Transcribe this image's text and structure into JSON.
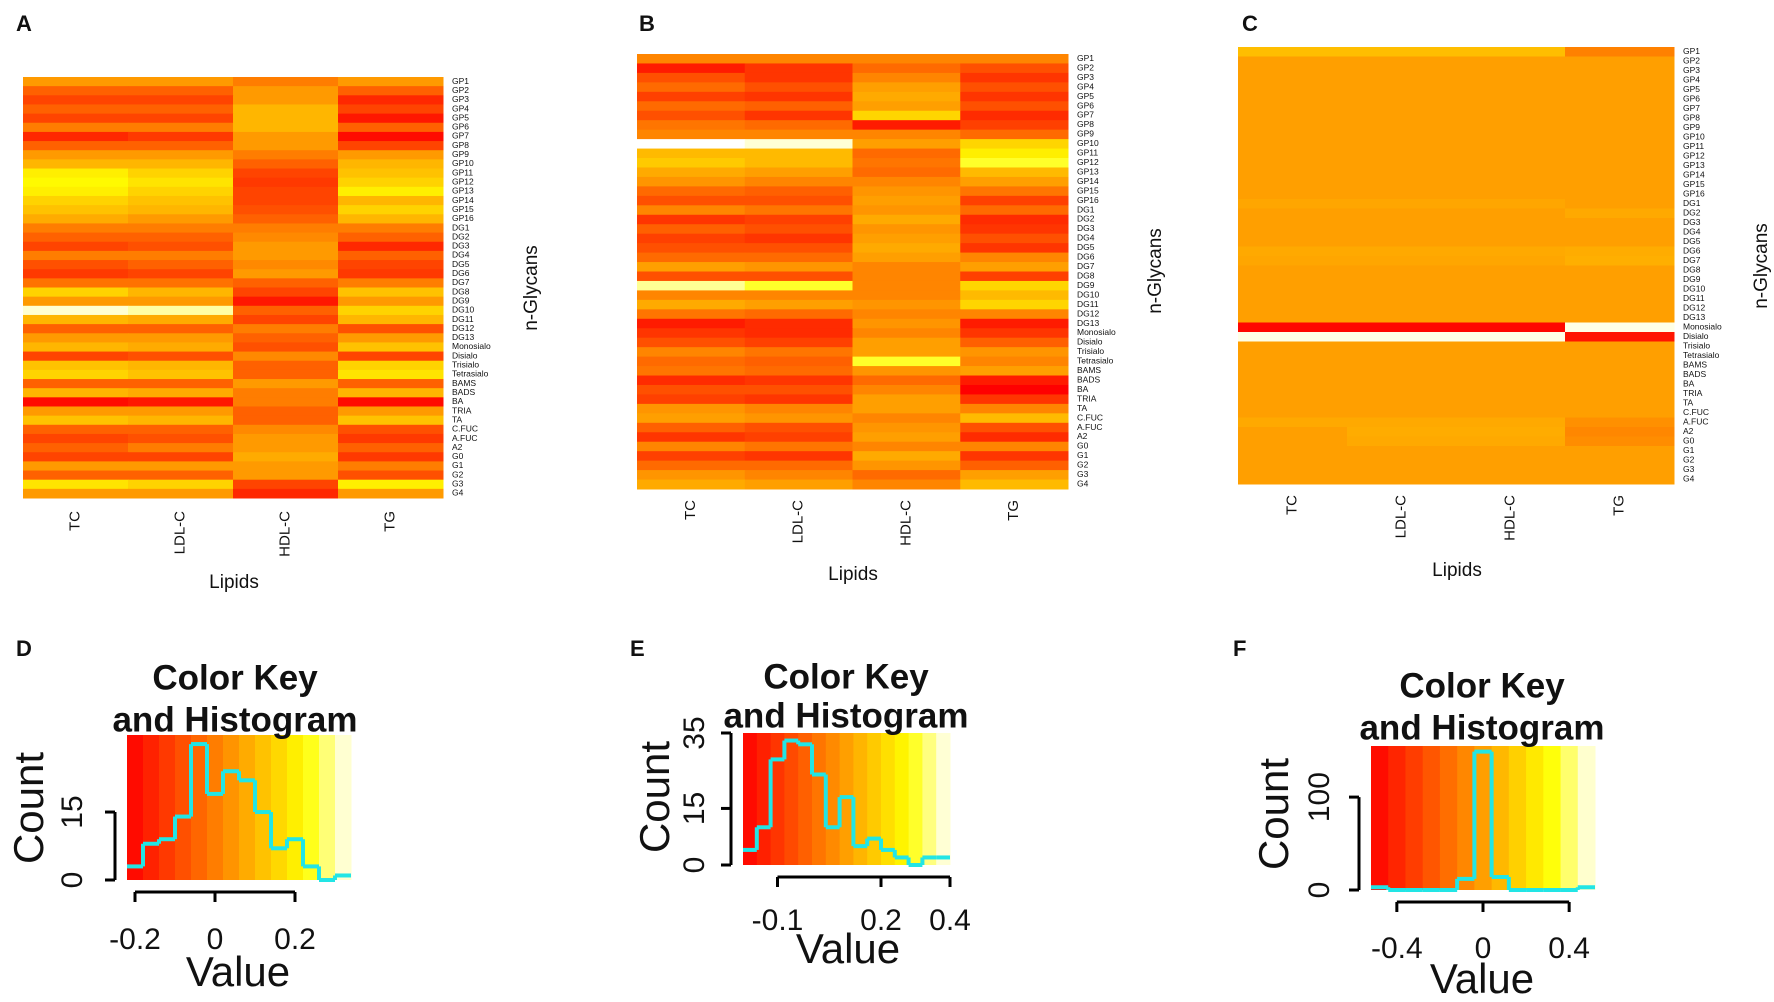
{
  "chart_data": [
    {
      "type": "heatmap",
      "panel": "A",
      "xlabel": "Lipids",
      "ylabel": "n-Glycans",
      "columns": [
        "TC",
        "LDL-C",
        "HDL-C",
        "TG"
      ],
      "rows": [
        "GP1",
        "GP2",
        "GP3",
        "GP4",
        "GP5",
        "GP6",
        "GP7",
        "GP8",
        "GP9",
        "GP10",
        "GP11",
        "GP12",
        "GP13",
        "GP14",
        "GP15",
        "GP16",
        "DG1",
        "DG2",
        "DG3",
        "DG4",
        "DG5",
        "DG6",
        "DG7",
        "DG8",
        "DG9",
        "DG10",
        "DG11",
        "DG12",
        "DG13",
        "Monosialo",
        "Disialo",
        "Trisialo",
        "Tetrasialo",
        "BAMS",
        "BADS",
        "BA",
        "TRIA",
        "TA",
        "C.FUC",
        "A.FUC",
        "A2",
        "G0",
        "G1",
        "G2",
        "G3",
        "G4"
      ],
      "zlim": [
        -0.22,
        0.34
      ],
      "values": [
        [
          0.05,
          0.05,
          0,
          0.05
        ],
        [
          -0.05,
          -0.05,
          0.05,
          -0.05
        ],
        [
          -0.1,
          -0.1,
          0.05,
          -0.15
        ],
        [
          -0.05,
          -0.05,
          0.1,
          -0.1
        ],
        [
          -0.1,
          -0.1,
          0.1,
          -0.18
        ],
        [
          0,
          0,
          0.1,
          -0.05
        ],
        [
          -0.15,
          -0.12,
          0.05,
          -0.2
        ],
        [
          -0.05,
          -0.05,
          0.05,
          -0.1
        ],
        [
          0.05,
          0.05,
          0,
          0.05
        ],
        [
          0.1,
          0.1,
          -0.05,
          0.1
        ],
        [
          0.2,
          0.15,
          -0.1,
          0.12
        ],
        [
          0.22,
          0.18,
          -0.12,
          0.15
        ],
        [
          0.2,
          0.15,
          -0.1,
          0.2
        ],
        [
          0.15,
          0.12,
          -0.1,
          0.1
        ],
        [
          0.12,
          0.1,
          -0.08,
          0.15
        ],
        [
          0.08,
          0.05,
          -0.05,
          0.1
        ],
        [
          0,
          0,
          0,
          0
        ],
        [
          -0.05,
          -0.05,
          0.02,
          -0.05
        ],
        [
          -0.1,
          -0.08,
          0.05,
          -0.15
        ],
        [
          0,
          0,
          0.05,
          -0.05
        ],
        [
          -0.08,
          -0.05,
          0.02,
          -0.1
        ],
        [
          -0.12,
          -0.1,
          0.05,
          -0.12
        ],
        [
          -0.02,
          -0.02,
          -0.05,
          0
        ],
        [
          0.15,
          0.1,
          -0.1,
          0.12
        ],
        [
          0.05,
          0.05,
          -0.18,
          0.05
        ],
        [
          0.32,
          0.3,
          -0.05,
          0.15
        ],
        [
          0.1,
          0.08,
          -0.1,
          0.1
        ],
        [
          -0.05,
          -0.05,
          0,
          -0.08
        ],
        [
          0.05,
          0.05,
          -0.05,
          0.05
        ],
        [
          0.1,
          0.08,
          -0.08,
          0.12
        ],
        [
          -0.1,
          -0.08,
          0.02,
          -0.1
        ],
        [
          0.12,
          0.1,
          -0.05,
          0.15
        ],
        [
          0.15,
          0.12,
          -0.05,
          0.18
        ],
        [
          -0.05,
          -0.05,
          0.05,
          -0.05
        ],
        [
          0.1,
          0.08,
          0,
          0.1
        ],
        [
          -0.2,
          -0.18,
          0,
          -0.2
        ],
        [
          0.05,
          0.05,
          -0.05,
          0.05
        ],
        [
          0.12,
          0.1,
          -0.05,
          0.12
        ],
        [
          -0.05,
          -0.05,
          0.02,
          -0.08
        ],
        [
          -0.1,
          -0.08,
          0.05,
          -0.12
        ],
        [
          -0.05,
          0,
          0.05,
          -0.05
        ],
        [
          -0.1,
          -0.1,
          0.08,
          -0.12
        ],
        [
          0.05,
          0.05,
          0.05,
          0
        ],
        [
          -0.05,
          -0.05,
          0.05,
          -0.08
        ],
        [
          0.18,
          0.15,
          -0.1,
          0.2
        ],
        [
          0.05,
          0.05,
          -0.15,
          0.05
        ]
      ]
    },
    {
      "type": "heatmap",
      "panel": "B",
      "xlabel": "Lipids",
      "ylabel": "n-Glycans",
      "columns": [
        "TC",
        "LDL-C",
        "HDL-C",
        "TG"
      ],
      "rows": [
        "GP1",
        "GP2",
        "GP3",
        "GP4",
        "GP5",
        "GP6",
        "GP7",
        "GP8",
        "GP9",
        "GP10",
        "GP11",
        "GP12",
        "GP13",
        "GP14",
        "GP15",
        "GP16",
        "DG1",
        "DG2",
        "DG3",
        "DG4",
        "DG5",
        "DG6",
        "DG7",
        "DG8",
        "DG9",
        "DG10",
        "DG11",
        "DG12",
        "DG13",
        "Monosialo",
        "Disialo",
        "Trisialo",
        "Tetrasialo",
        "BAMS",
        "BADS",
        "BA",
        "TRIA",
        "TA",
        "C.FUC",
        "A.FUC",
        "A2",
        "G0",
        "G1",
        "G2",
        "G3",
        "G4"
      ],
      "zlim": [
        -0.2,
        0.4
      ],
      "values": [
        [
          0.05,
          0.05,
          0.05,
          0.05
        ],
        [
          -0.15,
          -0.1,
          0,
          -0.05
        ],
        [
          -0.05,
          -0.1,
          0.05,
          -0.1
        ],
        [
          0,
          -0.05,
          0.1,
          -0.05
        ],
        [
          -0.08,
          -0.1,
          0.12,
          -0.1
        ],
        [
          0,
          -0.02,
          0.1,
          -0.05
        ],
        [
          -0.05,
          -0.1,
          0.2,
          -0.12
        ],
        [
          0.02,
          0,
          -0.15,
          -0.08
        ],
        [
          0.05,
          0.05,
          0.05,
          0
        ],
        [
          0.4,
          0.38,
          0.1,
          0.2
        ],
        [
          0.15,
          0.15,
          0,
          0.25
        ],
        [
          0.18,
          0.15,
          0.02,
          0.3
        ],
        [
          0.12,
          0.1,
          0,
          0.15
        ],
        [
          0.08,
          0.05,
          0.05,
          0.1
        ],
        [
          0,
          -0.02,
          0.08,
          0.02
        ],
        [
          -0.05,
          -0.05,
          0.1,
          -0.08
        ],
        [
          0.05,
          0.02,
          0.08,
          0
        ],
        [
          -0.1,
          -0.08,
          0.12,
          -0.12
        ],
        [
          -0.02,
          -0.05,
          0.08,
          -0.1
        ],
        [
          -0.08,
          -0.1,
          0.1,
          -0.05
        ],
        [
          -0.05,
          -0.05,
          0.12,
          -0.1
        ],
        [
          0,
          0,
          0.1,
          0.05
        ],
        [
          0.1,
          0.08,
          0.05,
          0.1
        ],
        [
          -0.05,
          -0.05,
          0.05,
          -0.08
        ],
        [
          0.35,
          0.3,
          0.05,
          0.2
        ],
        [
          0.05,
          0.05,
          0.05,
          0.15
        ],
        [
          0.12,
          0.1,
          0.08,
          0.2
        ],
        [
          0.02,
          0,
          0.05,
          0.05
        ],
        [
          -0.15,
          -0.12,
          0.08,
          -0.15
        ],
        [
          -0.1,
          -0.12,
          0.05,
          -0.1
        ],
        [
          -0.05,
          -0.08,
          0.1,
          -0.02
        ],
        [
          0.05,
          0.02,
          0.1,
          0.08
        ],
        [
          0,
          -0.02,
          0.3,
          0.05
        ],
        [
          0.02,
          0,
          0.08,
          0.1
        ],
        [
          -0.12,
          -0.1,
          0,
          -0.15
        ],
        [
          -0.05,
          -0.05,
          0.05,
          -0.2
        ],
        [
          -0.08,
          -0.1,
          0.1,
          -0.1
        ],
        [
          0.08,
          0.05,
          0.1,
          0.05
        ],
        [
          0.1,
          0.08,
          0.05,
          0.15
        ],
        [
          -0.02,
          -0.05,
          0.08,
          -0.05
        ],
        [
          -0.1,
          -0.08,
          0.1,
          -0.12
        ],
        [
          0.05,
          0.02,
          0.05,
          0.05
        ],
        [
          -0.08,
          -0.1,
          0.12,
          -0.1
        ],
        [
          0,
          0,
          0.08,
          -0.02
        ],
        [
          0.08,
          0.05,
          0,
          0.1
        ],
        [
          0.12,
          0.1,
          0.05,
          0.15
        ]
      ]
    },
    {
      "type": "heatmap",
      "panel": "C",
      "xlabel": "Lipids",
      "ylabel": "n-Glycans",
      "columns": [
        "TC",
        "LDL-C",
        "HDL-C",
        "TG"
      ],
      "rows": [
        "GP1",
        "GP2",
        "GP3",
        "GP4",
        "GP5",
        "GP6",
        "GP7",
        "GP8",
        "GP9",
        "GP10",
        "GP11",
        "GP12",
        "GP13",
        "GP14",
        "GP15",
        "GP16",
        "DG1",
        "DG2",
        "DG3",
        "DG4",
        "DG5",
        "DG6",
        "DG7",
        "DG8",
        "DG9",
        "DG10",
        "DG11",
        "DG12",
        "DG13",
        "Monosialo",
        "Disialo",
        "Trisialo",
        "Tetrasialo",
        "BAMS",
        "BADS",
        "BA",
        "TRIA",
        "TA",
        "C.FUC",
        "A.FUC",
        "A2",
        "G0",
        "G1",
        "G2",
        "G3",
        "G4"
      ],
      "zlim": [
        -0.52,
        0.52
      ],
      "values": [
        [
          0.1,
          0.1,
          0.1,
          -0.1
        ],
        [
          0,
          0,
          0,
          0
        ],
        [
          0,
          0,
          0,
          0
        ],
        [
          0,
          0,
          0,
          0
        ],
        [
          0,
          0,
          0,
          0
        ],
        [
          0,
          0,
          0,
          0
        ],
        [
          0,
          0,
          0,
          0
        ],
        [
          0,
          0,
          0,
          0
        ],
        [
          0,
          0,
          0,
          0
        ],
        [
          0,
          0,
          0,
          0
        ],
        [
          0,
          0,
          0,
          0
        ],
        [
          0,
          0,
          0,
          0
        ],
        [
          0,
          0,
          0,
          0
        ],
        [
          0,
          0,
          0,
          0
        ],
        [
          0,
          0,
          0,
          0
        ],
        [
          0,
          0,
          0,
          0
        ],
        [
          0.02,
          0.02,
          0.02,
          0
        ],
        [
          0,
          0,
          0,
          0.03
        ],
        [
          0,
          0,
          0,
          0
        ],
        [
          0,
          0,
          0,
          0
        ],
        [
          0,
          0,
          0,
          0
        ],
        [
          0.03,
          0.03,
          0.03,
          0.04
        ],
        [
          0.02,
          0.02,
          0.02,
          0.05
        ],
        [
          0,
          0,
          0,
          0
        ],
        [
          0,
          0,
          0,
          0
        ],
        [
          0,
          0,
          0,
          0
        ],
        [
          0,
          0,
          0,
          0
        ],
        [
          0,
          0,
          0,
          0
        ],
        [
          0,
          0,
          0,
          0
        ],
        [
          -0.5,
          -0.5,
          -0.5,
          0.5
        ],
        [
          0.5,
          0.5,
          0.5,
          -0.45
        ],
        [
          0,
          0,
          0,
          0
        ],
        [
          0,
          0,
          0,
          0
        ],
        [
          0,
          0,
          0,
          0
        ],
        [
          0,
          0,
          0,
          0
        ],
        [
          0,
          0,
          0,
          0
        ],
        [
          0,
          0,
          0,
          0
        ],
        [
          0,
          0,
          0,
          0
        ],
        [
          0,
          0,
          0,
          0
        ],
        [
          0.03,
          0.03,
          0.03,
          -0.05
        ],
        [
          0,
          0.04,
          0.04,
          -0.08
        ],
        [
          0,
          0.03,
          0.03,
          -0.06
        ],
        [
          0,
          0,
          0,
          0
        ],
        [
          0,
          0,
          0,
          0
        ],
        [
          0,
          0,
          0,
          0
        ],
        [
          0,
          0,
          0,
          0
        ]
      ]
    },
    {
      "type": "histogram",
      "panel": "D",
      "title": [
        "Color Key",
        "and Histogram"
      ],
      "xlabel": "Value",
      "ylabel": "Count",
      "bins": [
        -0.22,
        -0.18,
        -0.14,
        -0.1,
        -0.06,
        -0.02,
        0.02,
        0.06,
        0.1,
        0.14,
        0.18,
        0.22,
        0.26,
        0.3,
        0.34
      ],
      "counts": [
        3,
        8,
        9,
        14,
        30,
        19,
        24,
        22,
        15,
        7,
        9,
        3,
        0,
        1
      ],
      "xlim": [
        -0.22,
        0.34
      ],
      "ylim": [
        0,
        32
      ],
      "xticks": [
        -0.2,
        0,
        0.2
      ],
      "yticks": [
        0,
        15
      ],
      "color": "#22e5e5"
    },
    {
      "type": "histogram",
      "panel": "E",
      "title": [
        "Color Key",
        "and Histogram"
      ],
      "xlabel": "Value",
      "ylabel": "Count",
      "bins": [
        -0.2,
        -0.16,
        -0.12,
        -0.08,
        -0.04,
        0,
        0.04,
        0.08,
        0.12,
        0.16,
        0.2,
        0.24,
        0.28,
        0.32,
        0.36,
        0.4
      ],
      "counts": [
        4,
        10,
        28,
        33,
        32,
        24,
        10,
        18,
        5,
        7,
        4,
        2,
        0,
        2,
        2
      ],
      "xlim": [
        -0.2,
        0.4
      ],
      "ylim": [
        0,
        35
      ],
      "xticks": [
        -0.1,
        0.2,
        0.4
      ],
      "yticks": [
        0,
        15,
        35
      ],
      "color": "#22e5e5"
    },
    {
      "type": "histogram",
      "panel": "F",
      "title": [
        "Color Key",
        "and Histogram"
      ],
      "xlabel": "Value",
      "ylabel": "Count",
      "bins": [
        -0.52,
        -0.44,
        -0.36,
        -0.28,
        -0.2,
        -0.12,
        -0.04,
        0.04,
        0.12,
        0.2,
        0.28,
        0.36,
        0.44,
        0.52
      ],
      "counts": [
        3,
        0,
        0,
        0,
        0,
        12,
        149,
        14,
        0,
        0,
        0,
        0,
        3
      ],
      "xlim": [
        -0.52,
        0.52
      ],
      "ylim": [
        0,
        155
      ],
      "xticks": [
        -0.4,
        0,
        0.4
      ],
      "yticks": [
        0,
        100
      ],
      "color": "#22e5e5"
    }
  ]
}
